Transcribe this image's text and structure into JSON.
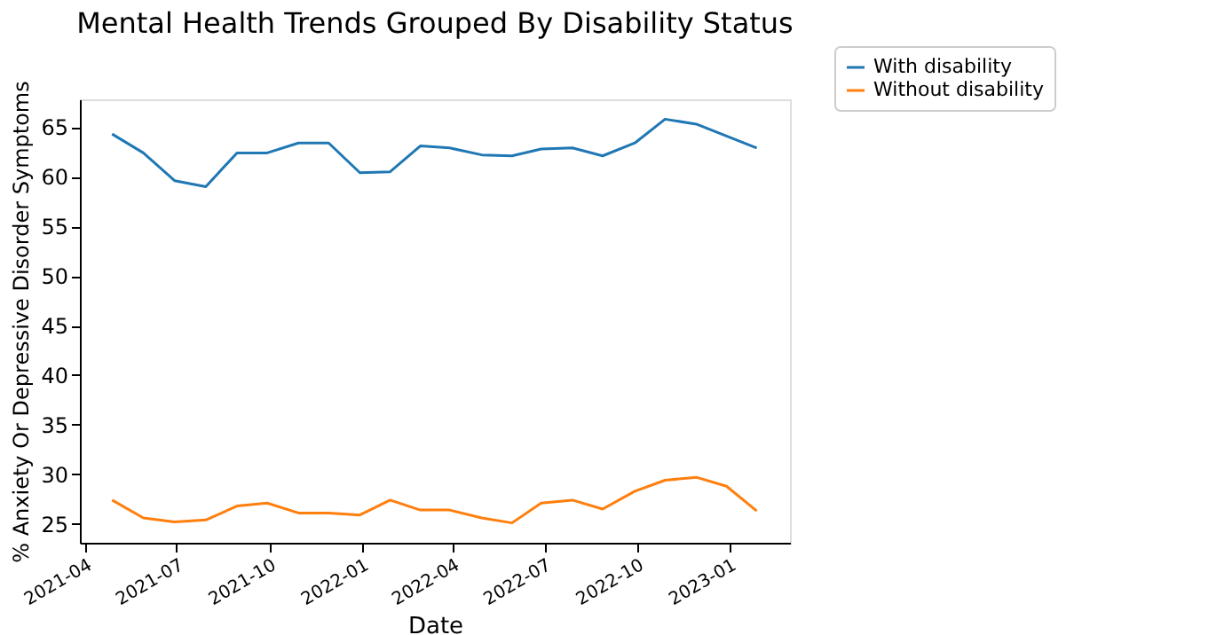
{
  "chart_data": {
    "type": "line",
    "title": "Mental Health Trends Grouped By Disability Status",
    "xlabel": "Date",
    "ylabel": "% Anxiety Or Depressive Disorder Symptoms",
    "x": [
      "2021-04-28",
      "2021-05-29",
      "2021-06-29",
      "2021-07-30",
      "2021-08-30",
      "2021-09-29",
      "2021-10-30",
      "2021-11-29",
      "2021-12-30",
      "2022-01-29",
      "2022-02-28",
      "2022-03-29",
      "2022-04-30",
      "2022-05-30",
      "2022-06-28",
      "2022-07-29",
      "2022-08-28",
      "2022-09-29",
      "2022-10-29",
      "2022-11-29",
      "2022-12-29",
      "2023-01-28"
    ],
    "series": [
      {
        "name": "With disability",
        "color": "#1f77b4",
        "values": [
          64.3,
          62.4,
          59.6,
          59.0,
          62.4,
          62.4,
          63.4,
          63.4,
          60.4,
          60.5,
          63.1,
          62.9,
          62.2,
          62.1,
          62.8,
          62.9,
          62.1,
          63.4,
          65.8,
          65.3,
          64.1,
          62.9
        ]
      },
      {
        "name": "Without disability",
        "color": "#ff7f0e",
        "values": [
          27.4,
          25.6,
          25.2,
          25.4,
          26.8,
          27.1,
          26.1,
          26.1,
          25.9,
          27.4,
          26.4,
          26.4,
          25.6,
          25.1,
          27.1,
          27.4,
          26.5,
          28.3,
          29.4,
          29.7,
          28.8,
          26.3
        ]
      }
    ],
    "xlim": [
      "2021-03-27",
      "2023-03-02"
    ],
    "xticks": [
      "2021-04",
      "2021-07",
      "2021-10",
      "2022-01",
      "2022-04",
      "2022-07",
      "2022-10",
      "2023-01"
    ],
    "ylim": [
      23.1,
      67.8
    ],
    "yticks": [
      25,
      30,
      35,
      40,
      45,
      50,
      55,
      60,
      65
    ],
    "grid": false,
    "legend": "top right",
    "line_style": "solid",
    "marker": "none"
  }
}
